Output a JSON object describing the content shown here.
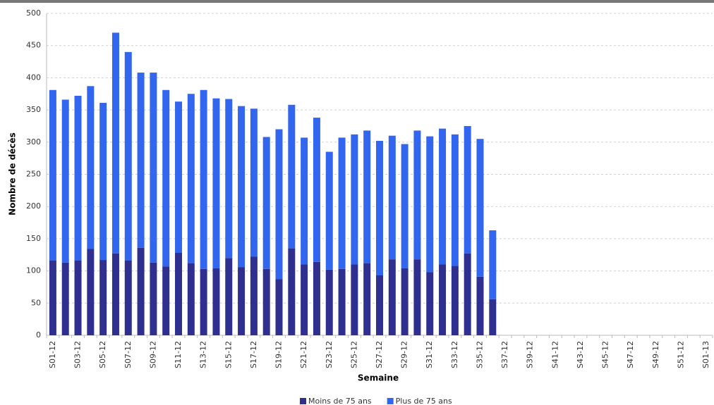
{
  "chart_data": {
    "type": "stacked_bar",
    "x_label": "Semaine",
    "y_label": "Nombre de décès",
    "categories": [
      "S01-12",
      null,
      "S03-12",
      null,
      "S05-12",
      null,
      "S07-12",
      null,
      "S09-12",
      null,
      "S11-12",
      null,
      "S13-12",
      null,
      "S15-12",
      null,
      "S17-12",
      null,
      "S19-12",
      null,
      "S21-12",
      null,
      "S23-12",
      null,
      "S25-12",
      null,
      "S27-12",
      null,
      "S29-12",
      null,
      "S31-12",
      null,
      "S33-12",
      null,
      "S35-12",
      null,
      "S37-12",
      null,
      "S39-12",
      null,
      "S41-12",
      null,
      "S43-12",
      null,
      "S45-12",
      null,
      "S47-12",
      null,
      "S49-12",
      null,
      "S51-12",
      null,
      "S01-13"
    ],
    "series": [
      {
        "name": "Moins de 75 ans",
        "color": "#2e2f8e",
        "values": [
          116,
          113,
          116,
          134,
          117,
          127,
          116,
          136,
          113,
          107,
          128,
          112,
          103,
          104,
          120,
          106,
          122,
          103,
          87,
          135,
          110,
          114,
          102,
          103,
          110,
          112,
          93,
          118,
          104,
          118,
          98,
          110,
          108,
          127,
          91,
          56,
          null,
          null,
          null,
          null,
          null,
          null,
          null,
          null,
          null,
          null,
          null,
          null,
          null,
          null,
          null,
          null,
          null
        ]
      },
      {
        "name": "Plus de 75 ans",
        "color": "#3366ee",
        "values": [
          265,
          253,
          256,
          253,
          244,
          343,
          324,
          272,
          295,
          274,
          235,
          263,
          278,
          264,
          247,
          250,
          230,
          205,
          233,
          223,
          197,
          224,
          183,
          204,
          202,
          206,
          209,
          192,
          193,
          200,
          211,
          211,
          204,
          198,
          214,
          107,
          null,
          null,
          null,
          null,
          null,
          null,
          null,
          null,
          null,
          null,
          null,
          null,
          null,
          null,
          null,
          null,
          null
        ]
      }
    ],
    "ylim": [
      0,
      500
    ],
    "yticks": [
      0,
      50,
      100,
      150,
      200,
      250,
      300,
      350,
      400,
      450,
      500
    ],
    "grid": true
  }
}
